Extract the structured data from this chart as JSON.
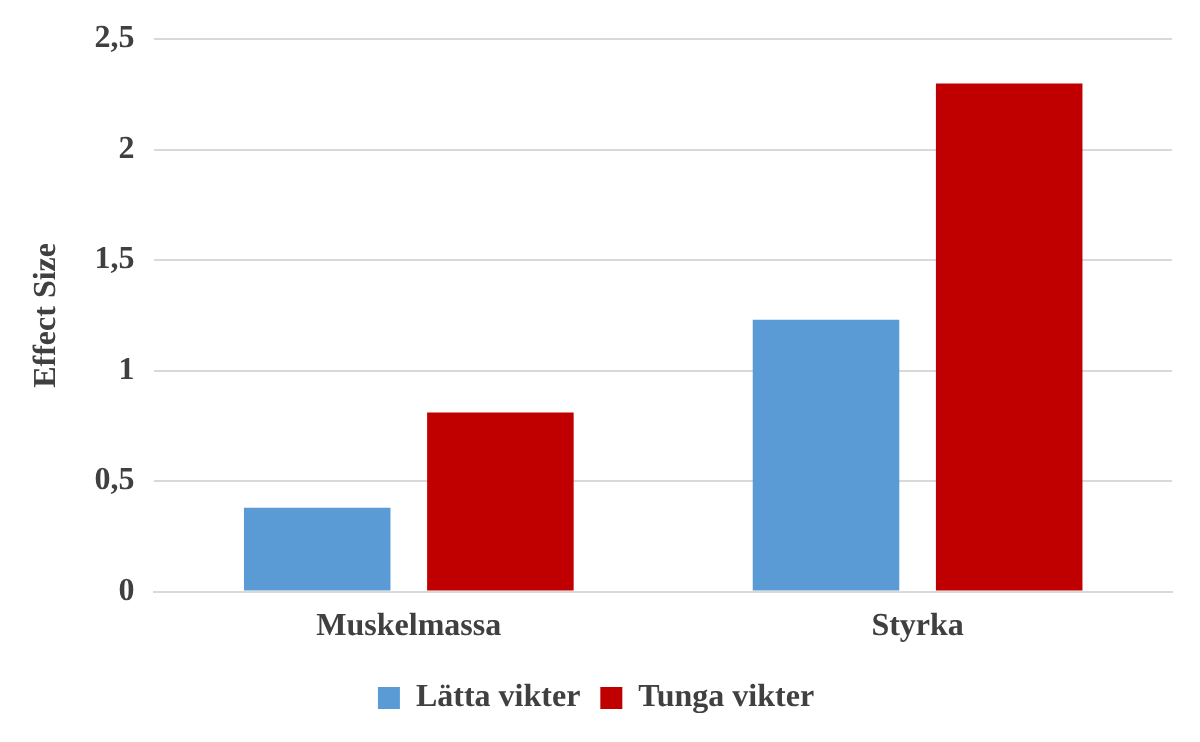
{
  "chart_data": {
    "type": "bar",
    "ylabel": "Effect Size",
    "categories": [
      "Muskelmassa",
      "Styrka"
    ],
    "series": [
      {
        "name": "Lätta vikter",
        "color": "#5b9bd5",
        "values": [
          0.38,
          1.23
        ]
      },
      {
        "name": "Tunga vikter",
        "color": "#c00000",
        "values": [
          0.81,
          2.3
        ]
      }
    ],
    "ylim": [
      0,
      2.5
    ],
    "yticks": [
      0,
      {
        "value": 0.5,
        "label": "0,5"
      },
      1,
      {
        "value": 1.5,
        "label": "1,5"
      },
      2,
      {
        "value": 2.5,
        "label": "2,5"
      }
    ],
    "grid": "y",
    "legend": "bottom"
  }
}
